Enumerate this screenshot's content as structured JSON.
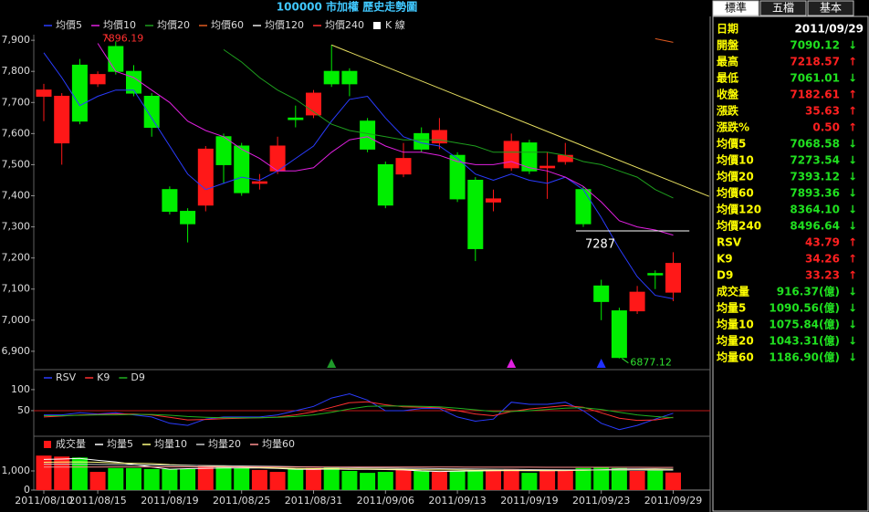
{
  "header": {
    "title": "100000 市加權  歷史走勢圖"
  },
  "chart_data": [
    {
      "type": "candlestick",
      "candle_legend": "K 線",
      "up_color": "#ff1818",
      "down_color": "#00ee00",
      "categories": [
        "2011/08/10",
        null,
        null,
        "2011/08/15",
        null,
        null,
        null,
        "2011/08/19",
        null,
        null,
        null,
        "2011/08/25",
        null,
        null,
        null,
        "2011/08/31",
        null,
        null,
        null,
        "2011/09/06",
        null,
        null,
        null,
        "2011/09/13",
        null,
        null,
        null,
        "2011/09/19",
        null,
        null,
        null,
        "2011/09/23",
        null,
        null,
        null,
        "2011/09/29"
      ],
      "open": [
        7720,
        7570,
        7820,
        7760,
        7880,
        7800,
        7720,
        7420,
        7350,
        7370,
        7590,
        7560,
        7440,
        7480,
        7650,
        7660,
        7800,
        7800,
        7640,
        7500,
        7470,
        7600,
        7570,
        7530,
        7450,
        7380,
        7490,
        7570,
        7490,
        7510,
        7420,
        7110,
        7030,
        7030,
        7150,
        7090.12
      ],
      "close": [
        7740,
        7720,
        7640,
        7790,
        7800,
        7730,
        7620,
        7350,
        7310,
        7550,
        7500,
        7410,
        7445,
        7560,
        7645,
        7730,
        7760,
        7760,
        7550,
        7370,
        7520,
        7550,
        7610,
        7390,
        7230,
        7390,
        7575,
        7480,
        7495,
        7530,
        7310,
        7060,
        6880,
        7090,
        7148,
        7182.61
      ],
      "high": [
        7760,
        7730,
        7840,
        7800,
        7896.19,
        7820,
        7730,
        7430,
        7360,
        7560,
        7600,
        7570,
        7470,
        7590,
        7690,
        7740,
        7885,
        7810,
        7650,
        7510,
        7570,
        7620,
        7650,
        7540,
        7460,
        7420,
        7600,
        7580,
        7540,
        7570,
        7430,
        7130,
        7040,
        7110,
        7160,
        7218.57
      ],
      "low": [
        7640,
        7500,
        7630,
        7750,
        7790,
        7720,
        7590,
        7340,
        7250,
        7350,
        7440,
        7400,
        7420,
        7470,
        7620,
        7650,
        7750,
        7720,
        7540,
        7360,
        7460,
        7540,
        7550,
        7380,
        7190,
        7350,
        7480,
        7470,
        7390,
        7500,
        7300,
        7000,
        6877.12,
        7020,
        7100,
        7061.01
      ],
      "series": [
        {
          "name": "均價5",
          "color": "#2a3cff",
          "values": [
            7860,
            7780,
            7690,
            7720,
            7740,
            7740,
            7650,
            7560,
            7470,
            7420,
            7440,
            7460,
            7450,
            7480,
            7520,
            7560,
            7640,
            7710,
            7720,
            7650,
            7590,
            7570,
            7560,
            7520,
            7470,
            7450,
            7470,
            7450,
            7440,
            7460,
            7420,
            7330,
            7230,
            7140,
            7080,
            7068.58
          ]
        },
        {
          "name": "均價10",
          "color": "#e020e0",
          "values": [
            null,
            null,
            null,
            7890,
            7800,
            7780,
            7740,
            7700,
            7640,
            7610,
            7590,
            7550,
            7520,
            7480,
            7480,
            7490,
            7540,
            7580,
            7590,
            7560,
            7540,
            7540,
            7530,
            7510,
            7500,
            7500,
            7510,
            7490,
            7480,
            7460,
            7430,
            7380,
            7320,
            7300,
            7290,
            7273.54
          ]
        },
        {
          "name": "均價20",
          "color": "#1e9e1e",
          "values": [
            null,
            null,
            null,
            null,
            null,
            null,
            null,
            null,
            null,
            null,
            7870,
            7830,
            7780,
            7740,
            7710,
            7670,
            7630,
            7610,
            7600,
            7590,
            7580,
            7580,
            7580,
            7570,
            7560,
            7540,
            7540,
            7540,
            7540,
            7530,
            7510,
            7500,
            7480,
            7460,
            7420,
            7393.12
          ]
        },
        {
          "name": "均價60",
          "color": "#e05a20",
          "values": [
            null,
            null,
            null,
            null,
            null,
            null,
            null,
            null,
            null,
            null,
            null,
            null,
            null,
            null,
            null,
            null,
            null,
            null,
            null,
            null,
            null,
            null,
            null,
            null,
            null,
            null,
            null,
            null,
            null,
            null,
            null,
            null,
            null,
            null,
            7905,
            7893.36
          ]
        },
        {
          "name": "均價120",
          "color": "#e8e8e8",
          "values": [
            null,
            null,
            null,
            null,
            null,
            null,
            null,
            null,
            null,
            null,
            null,
            null,
            null,
            null,
            null,
            null,
            null,
            null,
            null,
            null,
            null,
            null,
            null,
            null,
            null,
            null,
            null,
            null,
            null,
            null,
            null,
            null,
            null,
            null,
            null,
            null
          ]
        },
        {
          "name": "均價240",
          "color": "#ff3030",
          "values": [
            null,
            null,
            null,
            null,
            null,
            null,
            null,
            null,
            null,
            null,
            null,
            null,
            null,
            null,
            null,
            null,
            null,
            null,
            null,
            null,
            null,
            null,
            null,
            null,
            null,
            null,
            null,
            null,
            null,
            null,
            null,
            null,
            null,
            null,
            null,
            null
          ]
        }
      ],
      "high_label_color": "#ff3030",
      "low_label_color": "#30e030",
      "high_label_index": 4,
      "low_label_index": 32,
      "level_line": {
        "value": 7287,
        "start": 30,
        "end": 36
      },
      "trendline": {
        "start": {
          "index": 16,
          "value": 7885
        },
        "end": {
          "index": 37,
          "value": 7398
        },
        "color": "#e8e060"
      },
      "signals": [
        {
          "index": 16,
          "color": "#1f9a2a"
        },
        {
          "index": 26,
          "color": "#e020e0"
        },
        {
          "index": 31,
          "color": "#2030ff"
        }
      ],
      "ylim": [
        6841,
        7918
      ],
      "yticks": [
        {
          "value": 6900,
          "label": "6,900"
        },
        {
          "value": 7000,
          "label": "7,000"
        },
        {
          "value": 7100,
          "label": "7,100"
        },
        {
          "value": 7200,
          "label": "7,200"
        },
        {
          "value": 7300,
          "label": "7,300"
        },
        {
          "value": 7400,
          "label": "7,400"
        },
        {
          "value": 7500,
          "label": "7,500"
        },
        {
          "value": 7600,
          "label": "7,600"
        },
        {
          "value": 7700,
          "label": "7,700"
        },
        {
          "value": 7800,
          "label": "7,800"
        },
        {
          "value": 7900,
          "label": "7,900"
        }
      ]
    },
    {
      "type": "line",
      "series": [
        {
          "name": "RSV",
          "color": "#2a3cff",
          "values": [
            40,
            40,
            45,
            42,
            45,
            40,
            35,
            20,
            15,
            30,
            35,
            35,
            35,
            40,
            50,
            60,
            80,
            90,
            75,
            50,
            50,
            55,
            55,
            35,
            25,
            30,
            70,
            65,
            65,
            70,
            50,
            20,
            5,
            15,
            30,
            43.79
          ]
        },
        {
          "name": "K9",
          "color": "#ff3030",
          "values": [
            35,
            37,
            40,
            41,
            42,
            42,
            40,
            34,
            28,
            29,
            31,
            32,
            33,
            35,
            40,
            47,
            58,
            69,
            71,
            64,
            59,
            58,
            57,
            50,
            42,
            38,
            48,
            54,
            58,
            62,
            58,
            45,
            32,
            27,
            28,
            34.26
          ]
        },
        {
          "name": "D9",
          "color": "#20b020",
          "values": [
            38,
            38,
            39,
            40,
            40,
            41,
            41,
            39,
            36,
            34,
            33,
            33,
            33,
            34,
            36,
            40,
            46,
            54,
            60,
            61,
            61,
            60,
            59,
            56,
            52,
            48,
            48,
            50,
            53,
            56,
            57,
            53,
            46,
            40,
            36,
            33.23
          ]
        }
      ],
      "reference_line": 50,
      "reference_color": "#c01818",
      "ylim": [
        0,
        141
      ],
      "yticks": [
        50,
        100
      ]
    },
    {
      "type": "bar",
      "name": "成交量",
      "values": [
        1800,
        1750,
        1700,
        950,
        1150,
        1150,
        1100,
        1100,
        1100,
        1250,
        1200,
        1150,
        1050,
        950,
        1100,
        1150,
        1200,
        1000,
        900,
        950,
        1050,
        1000,
        950,
        1000,
        1000,
        1050,
        1100,
        900,
        1050,
        1000,
        1150,
        1200,
        1150,
        1000,
        1050,
        916.37
      ],
      "series": [
        {
          "name": "均量5",
          "color": "#ffffff",
          "values": [
            1600,
            1620,
            1650,
            1550,
            1470,
            1340,
            1210,
            1090,
            1120,
            1140,
            1150,
            1150,
            1150,
            1130,
            1090,
            1080,
            1100,
            1080,
            1080,
            1070,
            1050,
            1000,
            970,
            990,
            1000,
            1010,
            1020,
            1010,
            1010,
            1020,
            1040,
            1060,
            1100,
            1100,
            1110,
            1090.56
          ]
        },
        {
          "name": "均量10",
          "color": "#ffff80",
          "values": [
            1450,
            1460,
            1470,
            1450,
            1420,
            1400,
            1380,
            1330,
            1300,
            1270,
            1240,
            1200,
            1180,
            1150,
            1130,
            1120,
            1120,
            1110,
            1100,
            1090,
            1080,
            1060,
            1050,
            1050,
            1040,
            1040,
            1030,
            1030,
            1030,
            1040,
            1040,
            1050,
            1060,
            1070,
            1080,
            1075.84
          ]
        },
        {
          "name": "均量20",
          "color": "#c8c8c8",
          "values": [
            1350,
            1350,
            1350,
            1340,
            1330,
            1320,
            1310,
            1300,
            1290,
            1280,
            1270,
            1260,
            1250,
            1240,
            1220,
            1200,
            1180,
            1170,
            1160,
            1150,
            1140,
            1130,
            1120,
            1110,
            1100,
            1090,
            1080,
            1070,
            1065,
            1060,
            1055,
            1050,
            1048,
            1046,
            1044,
            1043.31
          ]
        },
        {
          "name": "均量60",
          "color": "#ff9090",
          "values": [
            1200,
            1200,
            1205,
            1205,
            1210,
            1210,
            1210,
            1215,
            1215,
            1215,
            1215,
            1215,
            1210,
            1210,
            1210,
            1210,
            1205,
            1205,
            1205,
            1200,
            1200,
            1200,
            1200,
            1198,
            1196,
            1195,
            1194,
            1193,
            1192,
            1191,
            1190,
            1190,
            1189,
            1188,
            1187,
            1186.9
          ]
        }
      ],
      "ylim": [
        0,
        2714
      ],
      "yticks": [
        0,
        {
          "value": 1000,
          "label": "1,000"
        }
      ]
    }
  ],
  "side_panel": {
    "tabs": [
      "標準",
      "五檔",
      "基本"
    ],
    "active_tab": 0,
    "up_color": "#ff2020",
    "down_color": "#20e020",
    "rows": [
      {
        "label": "日期",
        "value": "2011/09/29"
      },
      {
        "label": "開盤",
        "value": "7090.12",
        "arrow": "↓",
        "direction": "down"
      },
      {
        "label": "最高",
        "value": "7218.57",
        "arrow": "↑",
        "direction": "up"
      },
      {
        "label": "最低",
        "value": "7061.01",
        "arrow": "↓",
        "direction": "down"
      },
      {
        "label": "收盤",
        "value": "7182.61",
        "arrow": "↑",
        "direction": "up"
      },
      {
        "label": "漲跌",
        "value": "35.63",
        "arrow": "↑",
        "direction": "up"
      },
      {
        "label": "漲跌%",
        "value": "0.50",
        "arrow": "↑",
        "direction": "up"
      },
      {
        "label": "均價5",
        "value": "7068.58",
        "arrow": "↓",
        "direction": "down"
      },
      {
        "label": "均價10",
        "value": "7273.54",
        "arrow": "↓",
        "direction": "down"
      },
      {
        "label": "均價20",
        "value": "7393.12",
        "arrow": "↓",
        "direction": "down"
      },
      {
        "label": "均價60",
        "value": "7893.36",
        "arrow": "↓",
        "direction": "down"
      },
      {
        "label": "均價120",
        "value": "8364.10",
        "arrow": "↓",
        "direction": "down"
      },
      {
        "label": "均價240",
        "value": "8496.64",
        "arrow": "↓",
        "direction": "down"
      },
      {
        "label": "RSV",
        "value": "43.79",
        "arrow": "↑",
        "direction": "up"
      },
      {
        "label": "K9",
        "value": "34.26",
        "arrow": "↑",
        "direction": "up"
      },
      {
        "label": "D9",
        "value": "33.23",
        "arrow": "↑",
        "direction": "up"
      },
      {
        "label": "成交量",
        "value": "916.37(億)",
        "arrow": "↓",
        "direction": "down"
      },
      {
        "label": "均量5",
        "value": "1090.56(億)",
        "arrow": "↓",
        "direction": "down"
      },
      {
        "label": "均量10",
        "value": "1075.84(億)",
        "arrow": "↓",
        "direction": "down"
      },
      {
        "label": "均量20",
        "value": "1043.31(億)",
        "arrow": "↓",
        "direction": "down"
      },
      {
        "label": "均量60",
        "value": "1186.90(億)",
        "arrow": "↓",
        "direction": "down"
      }
    ]
  }
}
